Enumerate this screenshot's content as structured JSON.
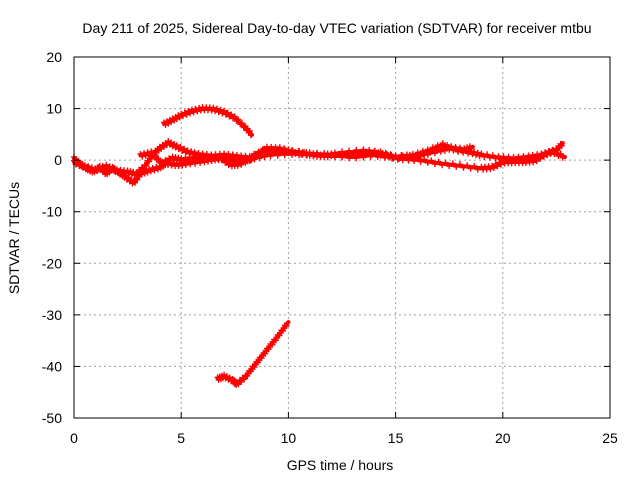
{
  "chart_data": {
    "type": "scatter",
    "title": "Day 211 of 2025, Sidereal Day-to-day VTEC variation (SDTVAR) for receiver mtbu",
    "xlabel": "GPS time / hours",
    "ylabel": "SDTVAR / TECUs",
    "xlim": [
      0,
      25
    ],
    "ylim": [
      -50,
      20
    ],
    "x_ticks": [
      0,
      5,
      10,
      15,
      20,
      25
    ],
    "y_ticks": [
      -50,
      -40,
      -30,
      -20,
      -10,
      0,
      10,
      20
    ],
    "grid": true,
    "legend": "none",
    "color": "#ff0000",
    "series": [
      {
        "name": "track-1",
        "points": [
          [
            0.0,
            0.3
          ],
          [
            0.3,
            -0.8
          ],
          [
            0.6,
            -1.6
          ],
          [
            0.9,
            -2.2
          ],
          [
            1.2,
            -1.4
          ],
          [
            1.5,
            -2.6
          ],
          [
            1.8,
            -1.6
          ],
          [
            2.1,
            -2.4
          ],
          [
            2.4,
            -3.3
          ],
          [
            2.8,
            -4.4
          ],
          [
            3.1,
            -2.6
          ],
          [
            3.5,
            -2.0
          ],
          [
            4.0,
            -1.4
          ],
          [
            4.3,
            -0.6
          ],
          [
            4.8,
            -0.9
          ],
          [
            5.3,
            -0.6
          ],
          [
            6.0,
            -0.2
          ],
          [
            6.5,
            0.2
          ],
          [
            7.0,
            0.4
          ],
          [
            7.6,
            -0.2
          ],
          [
            8.2,
            0.1
          ],
          [
            8.6,
            1.2
          ],
          [
            9.0,
            2.3
          ],
          [
            9.6,
            2.2
          ],
          [
            10.2,
            1.6
          ],
          [
            11.0,
            1.1
          ],
          [
            12.0,
            0.8
          ],
          [
            13.0,
            1.1
          ],
          [
            14.0,
            1.4
          ],
          [
            14.6,
            0.9
          ],
          [
            15.2,
            0.3
          ],
          [
            16.0,
            0.1
          ],
          [
            17.0,
            -0.6
          ],
          [
            18.0,
            -1.1
          ],
          [
            19.0,
            -1.6
          ],
          [
            19.5,
            -1.4
          ],
          [
            20.0,
            -0.4
          ],
          [
            20.5,
            -0.3
          ],
          [
            21.0,
            -0.3
          ],
          [
            21.5,
            -0.1
          ],
          [
            22.0,
            1.2
          ],
          [
            22.5,
            2.0
          ],
          [
            22.8,
            3.3
          ]
        ]
      },
      {
        "name": "track-2",
        "points": [
          [
            0.0,
            -0.4
          ],
          [
            0.5,
            -1.3
          ],
          [
            1.0,
            -1.9
          ],
          [
            1.5,
            -1.2
          ],
          [
            2.0,
            -2.1
          ],
          [
            2.5,
            -2.3
          ],
          [
            2.9,
            -2.7
          ],
          [
            3.3,
            -1.2
          ],
          [
            3.7,
            1.2
          ],
          [
            4.0,
            2.3
          ],
          [
            4.4,
            3.4
          ],
          [
            4.8,
            2.6
          ],
          [
            5.3,
            1.6
          ],
          [
            5.8,
            1.1
          ],
          [
            6.4,
            0.8
          ],
          [
            7.0,
            1.0
          ],
          [
            7.6,
            0.7
          ],
          [
            8.2,
            0.5
          ],
          [
            8.8,
            1.8
          ],
          [
            9.5,
            1.9
          ],
          [
            10.5,
            1.5
          ],
          [
            11.5,
            0.8
          ],
          [
            12.5,
            1.4
          ],
          [
            13.5,
            1.8
          ],
          [
            14.3,
            1.4
          ],
          [
            15.0,
            0.6
          ],
          [
            15.8,
            0.9
          ],
          [
            16.5,
            1.8
          ],
          [
            17.2,
            3.0
          ],
          [
            17.8,
            2.0
          ],
          [
            18.5,
            1.5
          ],
          [
            19.0,
            1.0
          ],
          [
            19.8,
            0.5
          ],
          [
            20.5,
            0.3
          ],
          [
            21.2,
            0.6
          ],
          [
            21.8,
            1.0
          ],
          [
            22.3,
            1.6
          ],
          [
            22.9,
            0.6
          ]
        ]
      },
      {
        "name": "track-3",
        "points": [
          [
            3.1,
            0.9
          ],
          [
            3.6,
            1.4
          ],
          [
            4.1,
            -0.6
          ],
          [
            4.6,
            0.4
          ],
          [
            5.0,
            0.1
          ],
          [
            5.6,
            0.4
          ],
          [
            6.2,
            0.6
          ],
          [
            6.8,
            0.5
          ],
          [
            7.3,
            -0.9
          ],
          [
            7.7,
            -0.8
          ],
          [
            8.3,
            0.3
          ],
          [
            9.0,
            1.0
          ],
          [
            10.0,
            1.3
          ],
          [
            11.0,
            1.2
          ],
          [
            12.0,
            1.0
          ],
          [
            13.0,
            0.6
          ],
          [
            14.0,
            1.0
          ],
          [
            15.0,
            0.5
          ],
          [
            16.0,
            0.8
          ],
          [
            17.0,
            1.8
          ],
          [
            17.6,
            2.4
          ],
          [
            18.2,
            2.0
          ],
          [
            18.6,
            2.6
          ]
        ]
      },
      {
        "name": "track-4",
        "points": [
          [
            4.2,
            7.0
          ],
          [
            4.6,
            7.8
          ],
          [
            5.0,
            8.7
          ],
          [
            5.5,
            9.5
          ],
          [
            6.0,
            10.0
          ],
          [
            6.5,
            9.9
          ],
          [
            7.0,
            9.3
          ],
          [
            7.5,
            8.2
          ],
          [
            8.0,
            6.3
          ],
          [
            8.3,
            4.9
          ]
        ]
      },
      {
        "name": "track-5",
        "points": [
          [
            6.7,
            -42.4
          ],
          [
            7.0,
            -41.9
          ],
          [
            7.4,
            -42.7
          ],
          [
            7.6,
            -43.4
          ],
          [
            8.0,
            -42.0
          ],
          [
            8.5,
            -39.4
          ],
          [
            9.0,
            -36.8
          ],
          [
            9.5,
            -34.2
          ],
          [
            10.0,
            -31.4
          ]
        ]
      }
    ]
  }
}
